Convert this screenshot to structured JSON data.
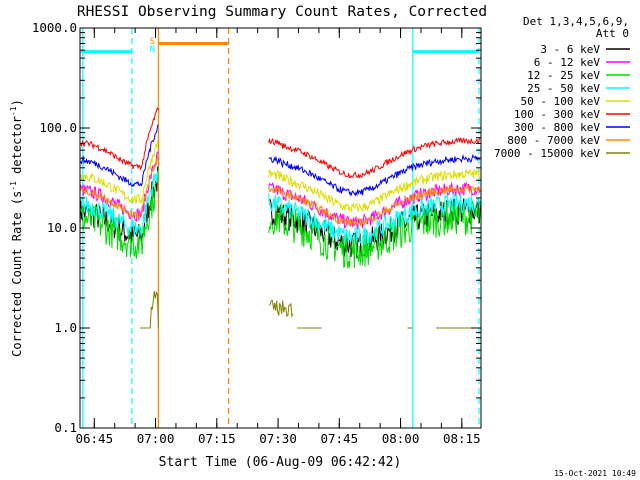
{
  "chart_data": {
    "type": "line",
    "title": "RHESSI Observing Summary Count Rates, Corrected",
    "xlabel": "Start Time (06-Aug-09 06:42:42)",
    "ylabel_main": "Corrected Count Rate (s",
    "ylabel_sup1": "-1",
    "ylabel_mid": " detector",
    "ylabel_sup2": "-1",
    "ylabel_end": ")",
    "yscale": "log",
    "xlim_minutes": [
      -1.2,
      97.0
    ],
    "ylim": [
      0.1,
      1000
    ],
    "x_ticks": [
      {
        "label": "06:45",
        "minute": 2.3
      },
      {
        "label": "07:00",
        "minute": 17.3
      },
      {
        "label": "07:15",
        "minute": 32.3
      },
      {
        "label": "07:30",
        "minute": 47.3
      },
      {
        "label": "07:45",
        "minute": 62.3
      },
      {
        "label": "08:00",
        "minute": 77.3
      },
      {
        "label": "08:15",
        "minute": 92.3
      }
    ],
    "y_ticks": [
      {
        "label": "0.1",
        "value": 0.1
      },
      {
        "label": "1.0",
        "value": 1
      },
      {
        "label": "10.0",
        "value": 10
      },
      {
        "label": "100.0",
        "value": 100
      },
      {
        "label": "1000.0",
        "value": 1000
      }
    ],
    "legend_position": "right-outside",
    "legend_header": [
      "Det 1,3,4,5,6,9,",
      "Att 0"
    ],
    "series": [
      {
        "name": "3 - 6 keV",
        "color": "#000000",
        "base": 15,
        "noise": 0.14
      },
      {
        "name": "6 - 12 keV",
        "color": "#ff00ff",
        "base": 25,
        "noise": 0.07
      },
      {
        "name": "12 - 25 keV",
        "color": "#00dd00",
        "base": 13,
        "noise": 0.18
      },
      {
        "name": "25 - 50 keV",
        "color": "#00ffff",
        "base": 18,
        "noise": 0.1
      },
      {
        "name": "50 - 100 keV",
        "color": "#dddd00",
        "base": 35,
        "noise": 0.05
      },
      {
        "name": "100 - 300 keV",
        "color": "#ff0000",
        "base": 75,
        "noise": 0.03
      },
      {
        "name": "300 - 800 keV",
        "color": "#0000ff",
        "base": 50,
        "noise": 0.035
      },
      {
        "name": "800 - 7000 keV",
        "color": "#ff8800",
        "base": 25,
        "noise": 0.04
      },
      {
        "name": "7000 - 15000 keV",
        "color": "#808000",
        "base": 1.0,
        "noise": 0.0
      }
    ],
    "segments_minutes": [
      [
        -1.2,
        18.0
      ],
      [
        45.0,
        97.0
      ]
    ],
    "dip_minutes": [
      13.0,
      66.0
    ],
    "flag_labels": [
      {
        "text": "S",
        "color": "#ff8800",
        "minute": 16.5
      },
      {
        "text": "N",
        "color": "#00ffff",
        "minute": 16.5
      }
    ],
    "bars": [
      {
        "kind": "saa",
        "color": "#00ffff",
        "start": -1.0,
        "end": 11.5,
        "value": 580
      },
      {
        "kind": "night",
        "color": "#ff8800",
        "start": 18.0,
        "end": 35.2,
        "value": 700
      },
      {
        "kind": "saa",
        "color": "#00ffff",
        "start": 80.3,
        "end": 96.5,
        "value": 580
      }
    ],
    "vlines": [
      {
        "minute": -0.5,
        "color": "#00ffff",
        "dash": false
      },
      {
        "minute": 11.5,
        "color": "#00ffff",
        "dash": true
      },
      {
        "minute": 18.0,
        "color": "#ff8800",
        "dash": false
      },
      {
        "minute": 35.2,
        "color": "#ff8800",
        "dash": true
      },
      {
        "minute": 80.3,
        "color": "#00ffff",
        "dash": false
      },
      {
        "minute": 96.5,
        "color": "#00ffff",
        "dash": true
      }
    ]
  },
  "timestamp": "15-Oct-2021 10:49"
}
